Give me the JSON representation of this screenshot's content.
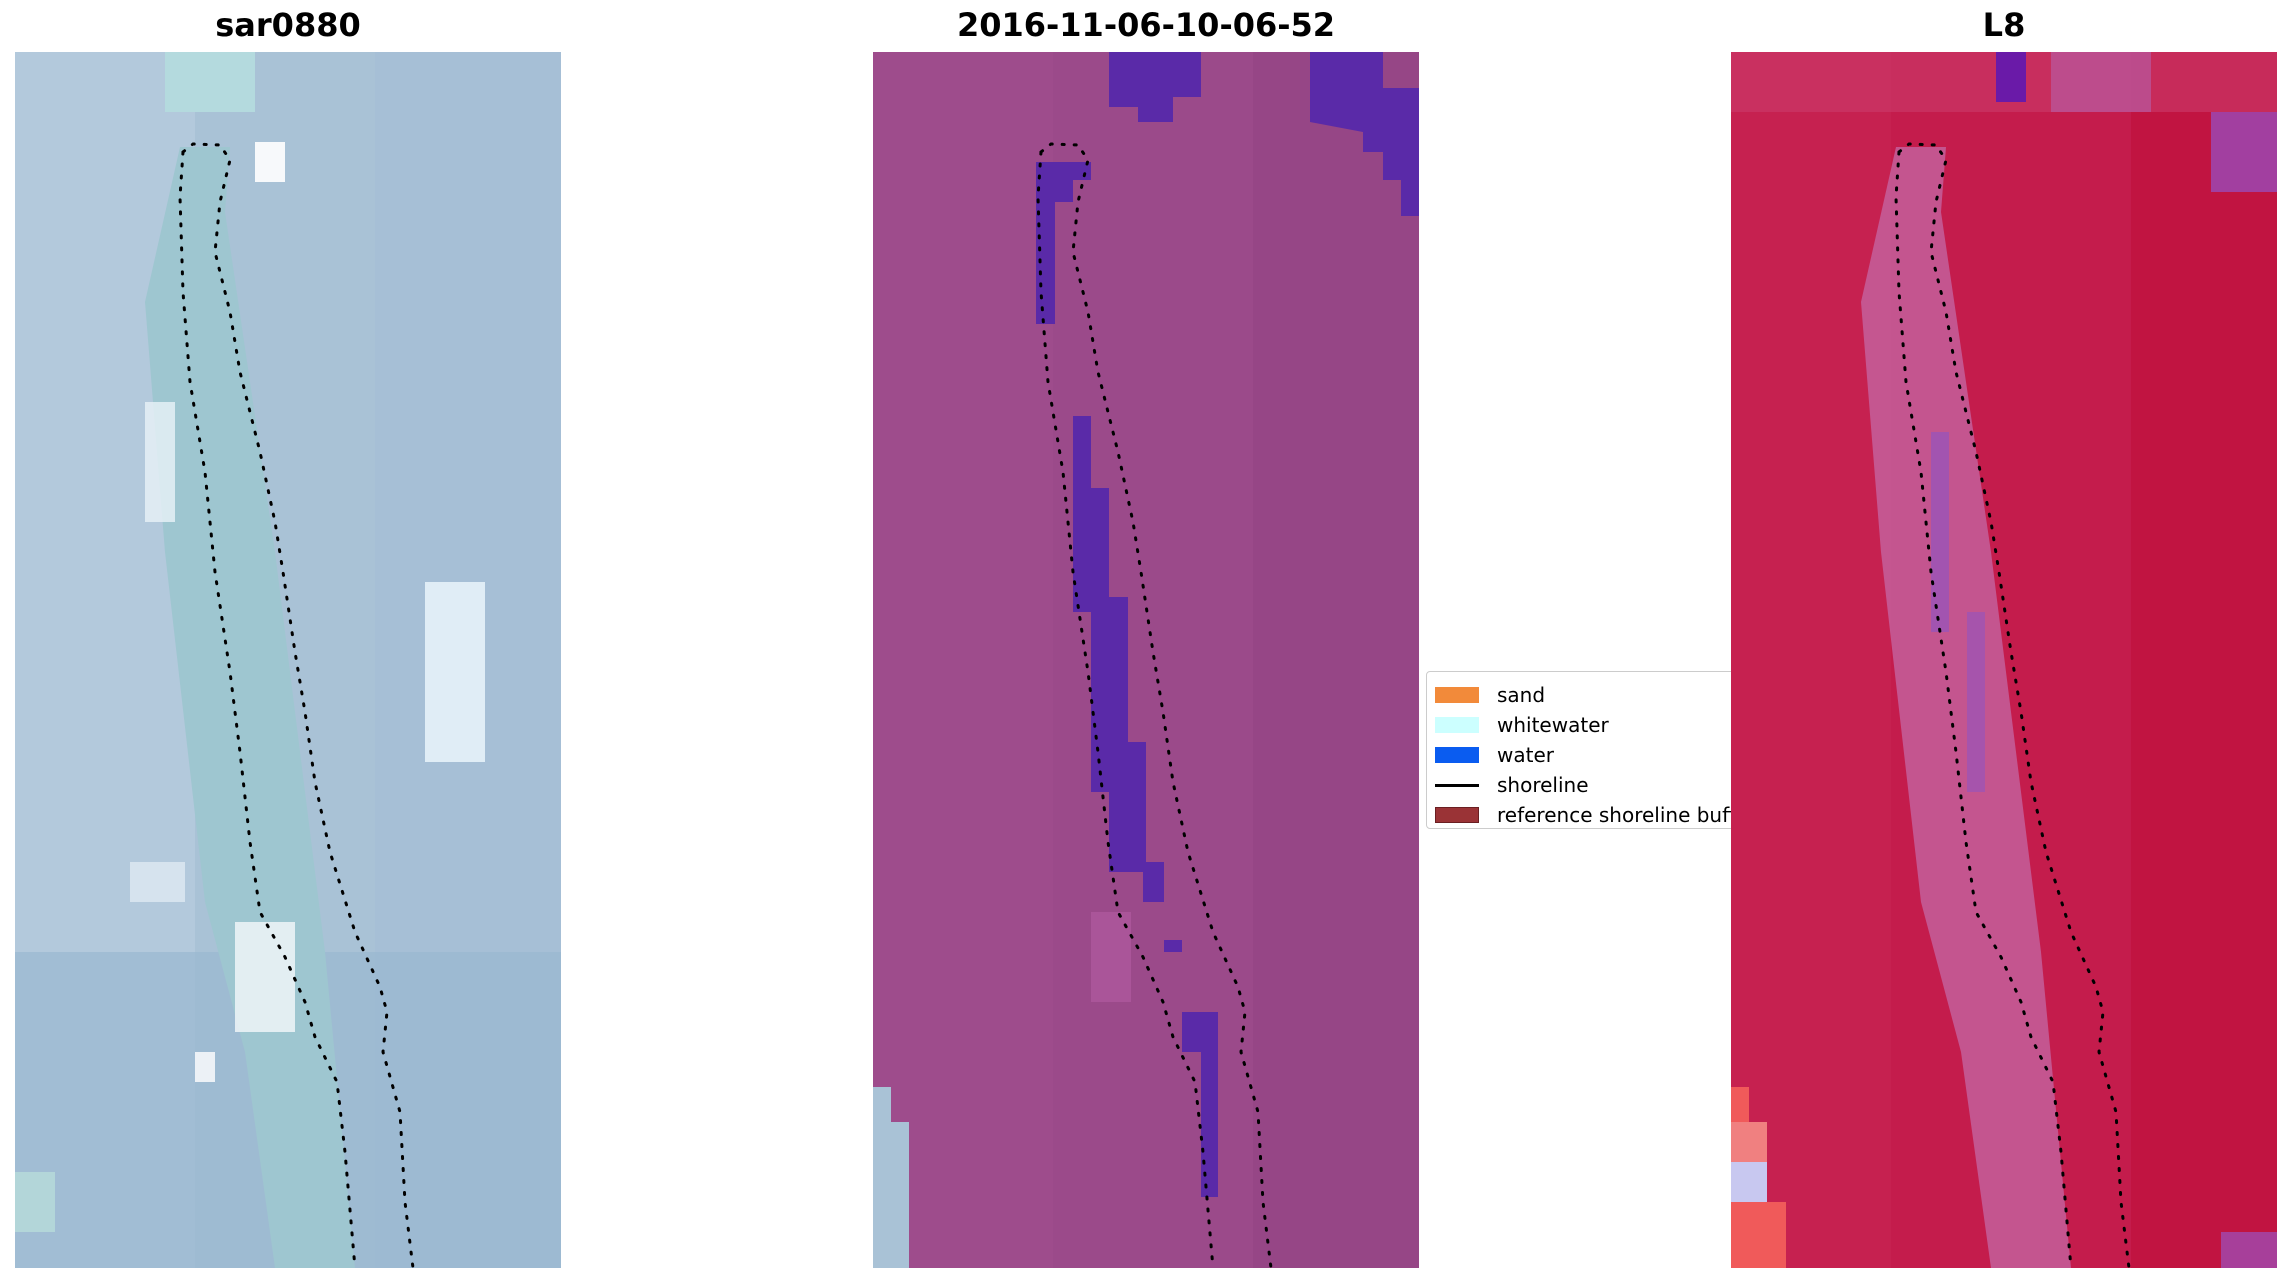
{
  "panels": [
    {
      "title": "sar0880"
    },
    {
      "title": "2016-11-06-10-06-52"
    },
    {
      "title": "L8"
    }
  ],
  "legend": {
    "items": [
      {
        "label": "sand",
        "color": "#f28a3a",
        "kind": "patch"
      },
      {
        "label": "whitewater",
        "color": "#ccffff",
        "kind": "patch"
      },
      {
        "label": "water",
        "color": "#0a5cf0",
        "kind": "patch"
      },
      {
        "label": "shoreline",
        "color": "#000000",
        "kind": "line"
      },
      {
        "label": "reference shoreline buffer",
        "color": "#9a3336",
        "kind": "patch"
      }
    ]
  },
  "colors": {
    "rgb_base": "#a9c2d6",
    "classified_base": "#9b4a8a",
    "classified_water": "#5a2aa8",
    "ndwi_base": "#c41c4c",
    "shoreline": "#000000"
  }
}
